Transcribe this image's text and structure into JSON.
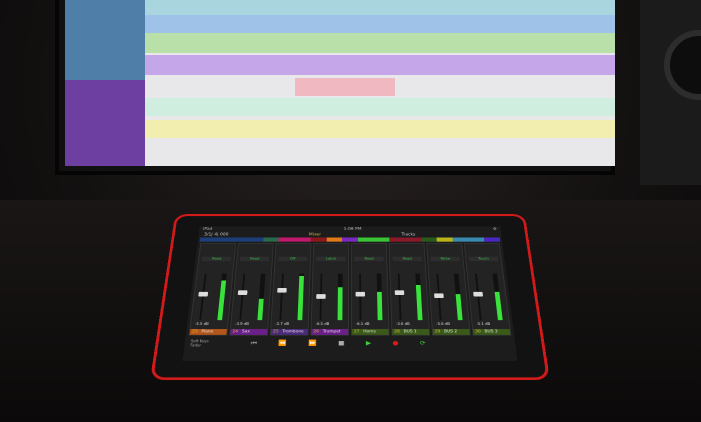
{
  "ipad": {
    "status": {
      "device": "iPad",
      "time": "1:06 PM"
    },
    "header": {
      "counter": "3/1| 4| 000",
      "tabs": [
        "Mixer",
        "Tracks"
      ],
      "accent": "#d6b24a"
    },
    "color_bar": [
      "#1d3e78",
      "#1d3e78",
      "#1d3e78",
      "#1d3e78",
      "#2a6a4a",
      "#c0186a",
      "#c0186a",
      "#8a1a1a",
      "#e07a18",
      "#7a2ac0",
      "#39c436",
      "#39c436",
      "#8a1a2a",
      "#8a1a2a",
      "#2a5a1a",
      "#b8b41a",
      "#3a8ab0",
      "#3a8ab0",
      "#4a28c0"
    ],
    "channels": [
      {
        "num": "23",
        "name": "Piano",
        "db": "-5.5 dB",
        "mode": "Read",
        "color": "#b3561a",
        "fader": 0.55,
        "meter": 0.85
      },
      {
        "num": "24",
        "name": "Sax",
        "db": "-3.9 dB",
        "mode": "Read",
        "color": "#6a1f8a",
        "fader": 0.6,
        "meter": 0.45
      },
      {
        "num": "25",
        "name": "Trombone",
        "db": "-2.7 dB",
        "mode": "Off",
        "color": "#4a2a7a",
        "fader": 0.65,
        "meter": 0.95
      },
      {
        "num": "26",
        "name": "Trumpet",
        "db": "-6.5 dB",
        "mode": "Latch",
        "color": "#6a1f8a",
        "fader": 0.5,
        "meter": 0.7
      },
      {
        "num": "27",
        "name": "Horns",
        "db": "-6.1 dB",
        "mode": "Read",
        "color": "#3a5a1a",
        "fader": 0.55,
        "meter": 0.6
      },
      {
        "num": "28",
        "name": "BUS 1",
        "db": "-3.6 dB",
        "mode": "Read",
        "color": "#3a5a1a",
        "fader": 0.6,
        "meter": 0.75
      },
      {
        "num": "29",
        "name": "BUS 2",
        "db": "-5.6 dB",
        "mode": "Write",
        "color": "#3a5a1a",
        "fader": 0.52,
        "meter": 0.55
      },
      {
        "num": "30",
        "name": "BUS 3",
        "db": "-5.1 dB",
        "mode": "Touch",
        "color": "#3a5a1a",
        "fader": 0.55,
        "meter": 0.6
      }
    ],
    "soft_keys": "Soft Keys",
    "fader_label": "Fader"
  }
}
